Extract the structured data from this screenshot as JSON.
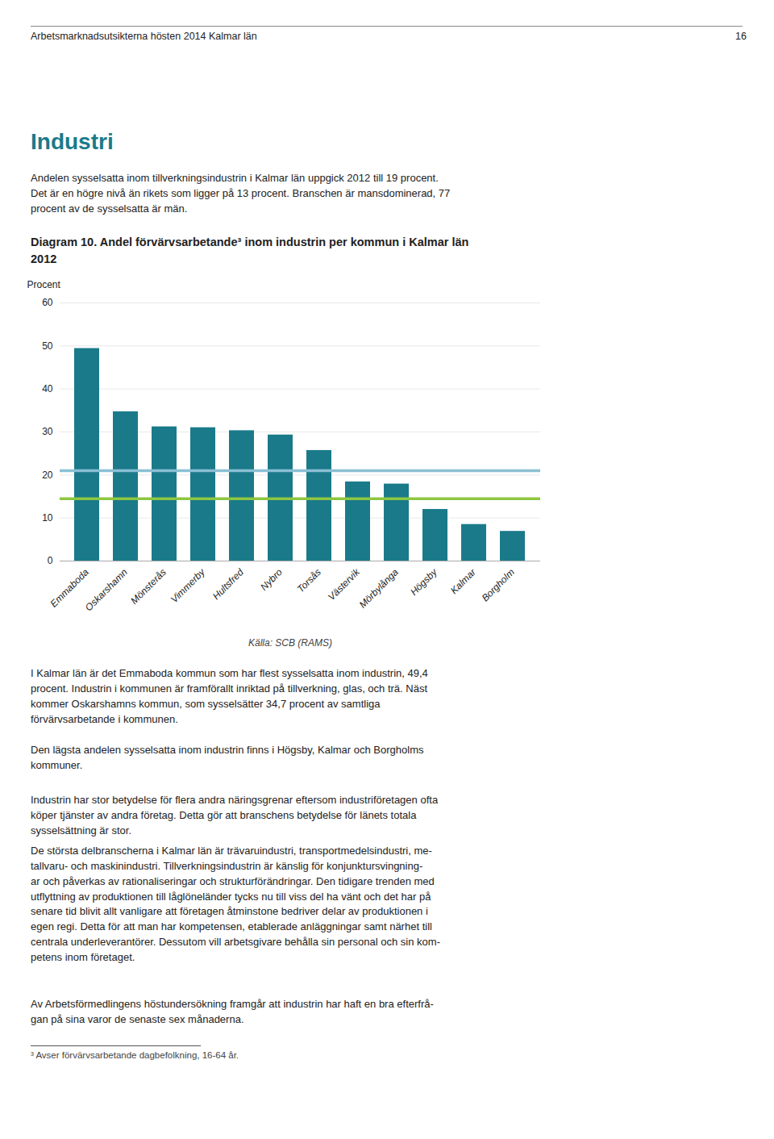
{
  "chart_data": {
    "type": "bar",
    "title": "Diagram 10. Andel förvärvsarbetande³ inom industrin per kommun i Kalmar län 2012",
    "ylabel": "Procent",
    "categories": [
      "Emmaboda",
      "Oskarshamn",
      "Mönsterås",
      "Vimmerby",
      "Hultsfred",
      "Nybro",
      "Torsås",
      "Västervik",
      "Mörbylånga",
      "Högsby",
      "Kalmar",
      "Borgholm"
    ],
    "values": [
      49.4,
      34.7,
      31.2,
      31.0,
      30.3,
      29.3,
      25.7,
      18.4,
      17.9,
      12.0,
      8.5,
      6.9
    ],
    "color": "#1a7a8a",
    "reference_lines": [
      {
        "value": 21.0,
        "color": "#8bbfd4"
      },
      {
        "value": 14.5,
        "color": "#8dc641"
      }
    ],
    "ylim": [
      0,
      60
    ],
    "yticks": [
      0,
      10,
      20,
      30,
      40,
      50,
      60
    ],
    "grid": true,
    "annotations": [
      "Källa: SCB (RAMS)"
    ]
  },
  "page": {
    "header": "Arbetsmarknadsutsikterna hösten 2014 Kalmar län",
    "page_number": "16",
    "section_title": "Industri",
    "intro": "Andelen sysselsatta inom tillverkningsindustrin i Kalmar län uppgick 2012 till 19 procent.\nDet är en högre nivå än rikets som ligger på 13 procent. Branschen är mansdominerad, 77\nprocent av de sysselsatta är män.",
    "paragraphs": [
      "I Kalmar län är det Emmaboda kommun som har flest sysselsatta inom industrin, 49,4\nprocent. Industrin i kommunen är framförallt inriktad på tillverkning, glas, och trä. Näst\nkommer Oskarshamns kommun, som sysselsätter 34,7 procent av samtliga\nförvärvsarbetande i kommunen.",
      "Den lägsta andelen sysselsatta inom industrin finns i Högsby, Kalmar och Borgholms\nkommuner.",
      "Industrin har stor betydelse för flera andra näringsgrenar eftersom industriföretagen ofta\nköper tjänster av andra företag. Detta gör att branschens betydelse för länets totala\nsysselsättning är stor.",
      "De största delbranscherna i Kalmar län är trävaruindustri, transportmedelsindustri, me-\ntallvaru- och maskinindustri. Tillverkningsindustrin är känslig för konjunktursvingning-\nar och påverkas av rationaliseringar och strukturförändringar. Den tidigare trenden med\nutflyttning av produktionen till låglöneländer tycks nu till viss del ha vänt och det har på\nsenare tid blivit allt vanligare att företagen åtminstone bedriver delar av produktionen i\negen regi. Detta för att man har kompetensen, etablerade anläggningar samt närhet till\ncentrala underleverantörer. Dessutom vill arbetsgivare behålla sin personal och sin kom-\npetens inom företaget.",
      "Av Arbetsförmedlingens höstundersökning framgår att industrin har haft en bra efterfrå-\ngan på sina varor de senaste sex månaderna."
    ],
    "footnote": "³ Avser förvärvsarbetande dagbefolkning, 16-64 år."
  }
}
